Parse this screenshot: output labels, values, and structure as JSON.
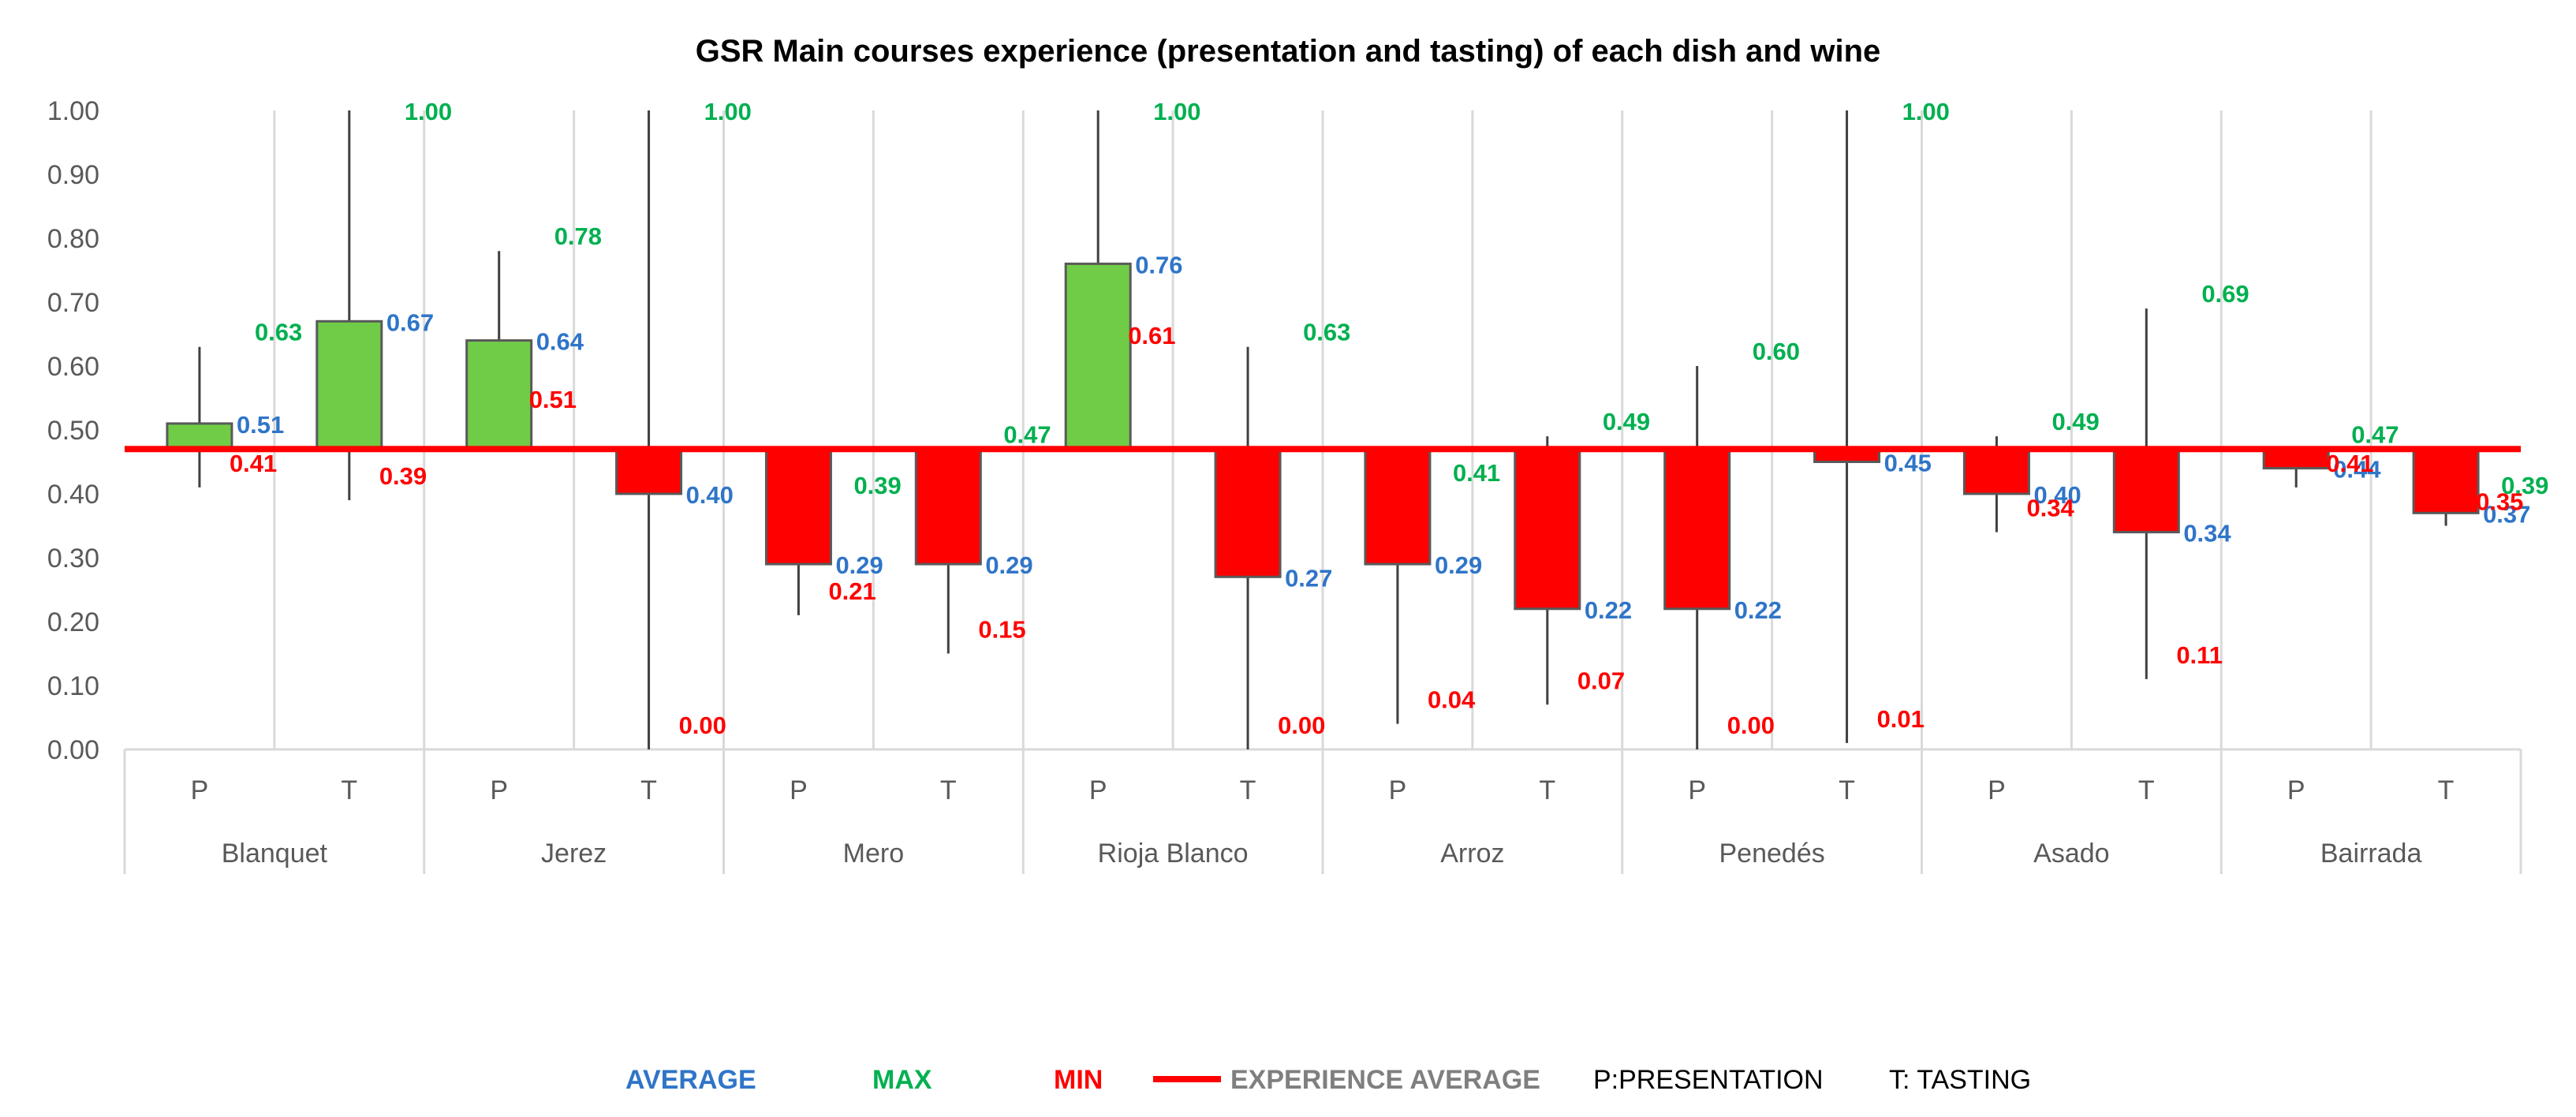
{
  "chart_data": {
    "type": "box",
    "title": "GSR Main courses experience (presentation and tasting) of each dish and wine",
    "ylim": [
      0,
      1
    ],
    "yticks": [
      "0.00",
      "0.10",
      "0.20",
      "0.30",
      "0.40",
      "0.50",
      "0.60",
      "0.70",
      "0.80",
      "0.90",
      "1.00"
    ],
    "reference_line": 0.47,
    "groups": [
      "Blanquet",
      "Jerez",
      "Mero",
      "Rioja Blanco",
      "Arroz",
      "Penedés",
      "Asado",
      "Bairrada"
    ],
    "subcategories": [
      "P",
      "T"
    ],
    "series": [
      {
        "group": "Blanquet",
        "sub": "P",
        "average": 0.51,
        "max": 0.63,
        "min": 0.41,
        "average_label": "0.51",
        "max_label": "0.63",
        "min_label": "0.41"
      },
      {
        "group": "Blanquet",
        "sub": "T",
        "average": 0.67,
        "max": 1.0,
        "min": 0.39,
        "average_label": "0.67",
        "max_label": "1.00",
        "min_label": "0.39"
      },
      {
        "group": "Jerez",
        "sub": "P",
        "average": 0.64,
        "max": 0.78,
        "min": 0.51,
        "average_label": "0.64",
        "max_label": "0.78",
        "min_label": "0.51"
      },
      {
        "group": "Jerez",
        "sub": "T",
        "average": 0.4,
        "max": 1.0,
        "min": 0.0,
        "average_label": "0.40",
        "max_label": "1.00",
        "min_label": "0.00"
      },
      {
        "group": "Mero",
        "sub": "P",
        "average": 0.29,
        "max": 0.39,
        "min": 0.21,
        "average_label": "0.29",
        "max_label": "0.39",
        "min_label": "0.21"
      },
      {
        "group": "Mero",
        "sub": "T",
        "average": 0.29,
        "max": 0.47,
        "min": 0.15,
        "average_label": "0.29",
        "max_label": "0.47",
        "min_label": "0.15"
      },
      {
        "group": "Rioja Blanco",
        "sub": "P",
        "average": 0.76,
        "max": 1.0,
        "min": 0.61,
        "average_label": "0.76",
        "max_label": "1.00",
        "min_label": "0.61"
      },
      {
        "group": "Rioja Blanco",
        "sub": "T",
        "average": 0.27,
        "max": 0.63,
        "min": 0.0,
        "average_label": "0.27",
        "max_label": "0.63",
        "min_label": "0.00"
      },
      {
        "group": "Arroz",
        "sub": "P",
        "average": 0.29,
        "max": 0.41,
        "min": 0.04,
        "average_label": "0.29",
        "max_label": "0.41",
        "min_label": "0.04"
      },
      {
        "group": "Arroz",
        "sub": "T",
        "average": 0.22,
        "max": 0.49,
        "min": 0.07,
        "average_label": "0.22",
        "max_label": "0.49",
        "min_label": "0.07"
      },
      {
        "group": "Penedés",
        "sub": "P",
        "average": 0.22,
        "max": 0.6,
        "min": 0.0,
        "average_label": "0.22",
        "max_label": "0.60",
        "min_label": "0.00"
      },
      {
        "group": "Penedés",
        "sub": "T",
        "average": 0.45,
        "max": 1.0,
        "min": 0.01,
        "average_label": "0.45",
        "max_label": "1.00",
        "min_label": "0.01"
      },
      {
        "group": "Asado",
        "sub": "P",
        "average": 0.4,
        "max": 0.49,
        "min": 0.34,
        "average_label": "0.40",
        "max_label": "0.49",
        "min_label": "0.34"
      },
      {
        "group": "Asado",
        "sub": "T",
        "average": 0.34,
        "max": 0.69,
        "min": 0.11,
        "average_label": "0.34",
        "max_label": "0.69",
        "min_label": "0.11"
      },
      {
        "group": "Bairrada",
        "sub": "P",
        "average": 0.44,
        "max": 0.47,
        "min": 0.41,
        "average_label": "0.44",
        "max_label": "0.47",
        "min_label": "0.41"
      },
      {
        "group": "Bairrada",
        "sub": "T",
        "average": 0.37,
        "max": 0.39,
        "min": 0.35,
        "average_label": "0.37",
        "max_label": "0.39",
        "min_label": "0.35"
      }
    ],
    "legend": {
      "average": "AVERAGE",
      "max": "MAX",
      "min": "MIN",
      "experience_average": "EXPERIENCE AVERAGE",
      "presentation": "P:PRESENTATION",
      "tasting": "T: TASTING"
    },
    "colors": {
      "above": "#70cc46",
      "below": "#ff0000",
      "reference": "#ff0000",
      "average_text": "#2f75c8",
      "max_text": "#00b050",
      "min_text": "#ff0000",
      "whisker": "#404040",
      "grid": "#d9d9d9",
      "axis_text": "#595959"
    }
  }
}
